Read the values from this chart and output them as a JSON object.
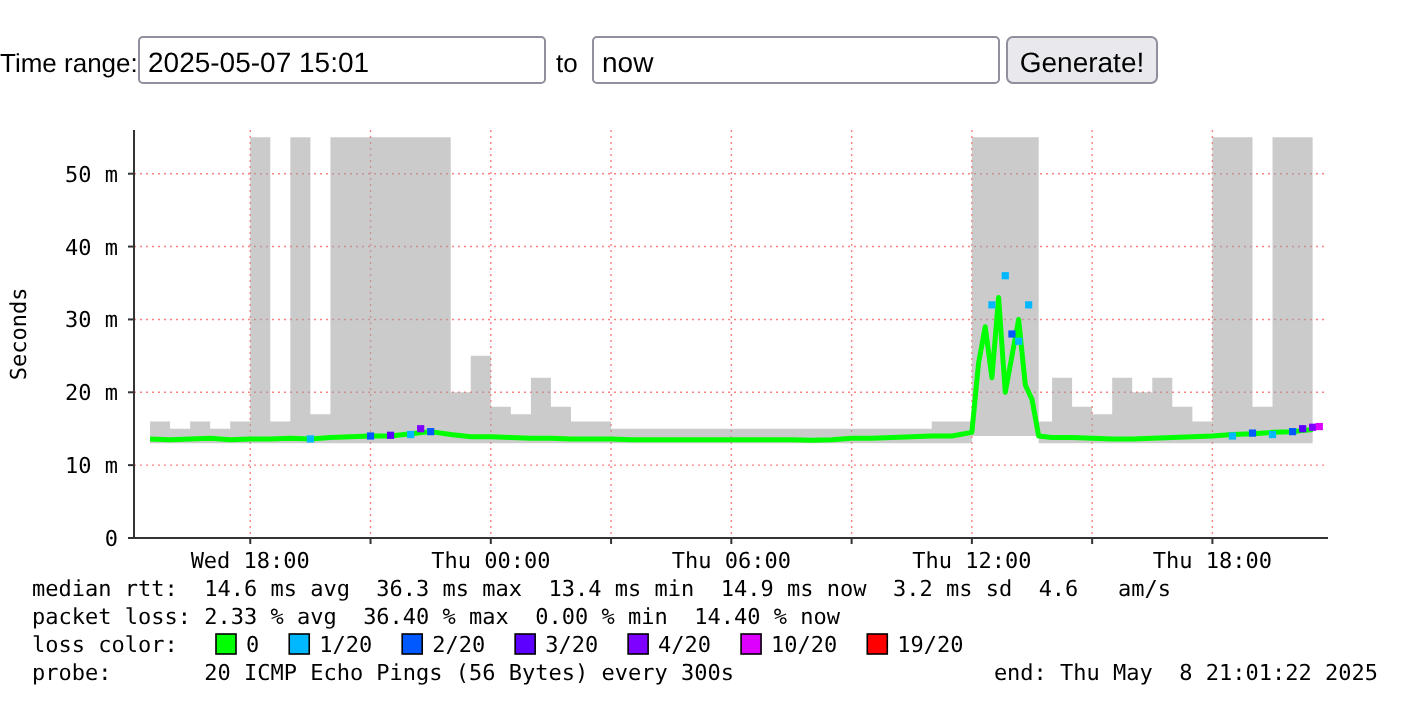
{
  "chart_data": {
    "type": "line",
    "ylabel": "Seconds",
    "xlim": [
      "2025-05-07T15:06",
      "2025-05-08T20:53"
    ],
    "ylim": [
      0,
      56
    ],
    "xticks": [
      {
        "value": "2025-05-07T18:00",
        "label": "Wed 18:00"
      },
      {
        "value": "2025-05-07T21:00",
        "label": null
      },
      {
        "value": "2025-05-08T00:00",
        "label": "Thu 00:00"
      },
      {
        "value": "2025-05-08T03:00",
        "label": null
      },
      {
        "value": "2025-05-08T06:00",
        "label": "Thu 06:00"
      },
      {
        "value": "2025-05-08T09:00",
        "label": null
      },
      {
        "value": "2025-05-08T12:00",
        "label": "Thu 12:00"
      },
      {
        "value": "2025-05-08T15:00",
        "label": null
      },
      {
        "value": "2025-05-08T18:00",
        "label": "Thu 18:00"
      }
    ],
    "yticks": [
      0,
      {
        "value": 10,
        "label": "10 m"
      },
      {
        "value": 20,
        "label": "20 m"
      },
      {
        "value": 30,
        "label": "30 m"
      },
      {
        "value": 40,
        "label": "40 m"
      },
      {
        "value": 50,
        "label": "50 m"
      }
    ],
    "grid": true,
    "legend": "bottom",
    "legend_title": "loss color:",
    "series": [
      {
        "name": "0",
        "color": "#00ff00",
        "x": [
          "2025-05-07T15:30",
          "2025-05-07T16:00",
          "2025-05-07T16:30",
          "2025-05-07T17:00",
          "2025-05-07T17:30",
          "2025-05-07T18:00",
          "2025-05-07T18:30",
          "2025-05-07T19:00",
          "2025-05-07T19:30",
          "2025-05-07T20:00",
          "2025-05-07T20:30",
          "2025-05-07T21:00",
          "2025-05-07T21:30",
          "2025-05-07T22:00",
          "2025-05-07T22:30",
          "2025-05-07T23:00",
          "2025-05-07T23:30",
          "2025-05-08T00:00",
          "2025-05-08T00:30",
          "2025-05-08T01:00",
          "2025-05-08T01:30",
          "2025-05-08T02:00",
          "2025-05-08T02:30",
          "2025-05-08T03:00",
          "2025-05-08T03:30",
          "2025-05-08T04:00",
          "2025-05-08T04:30",
          "2025-05-08T05:00",
          "2025-05-08T05:30",
          "2025-05-08T06:00",
          "2025-05-08T06:30",
          "2025-05-08T07:00",
          "2025-05-08T07:30",
          "2025-05-08T08:00",
          "2025-05-08T08:30",
          "2025-05-08T09:00",
          "2025-05-08T09:30",
          "2025-05-08T10:00",
          "2025-05-08T10:30",
          "2025-05-08T11:00",
          "2025-05-08T11:30",
          "2025-05-08T12:00",
          "2025-05-08T12:10",
          "2025-05-08T12:20",
          "2025-05-08T12:30",
          "2025-05-08T12:40",
          "2025-05-08T12:50",
          "2025-05-08T13:00",
          "2025-05-08T13:10",
          "2025-05-08T13:20",
          "2025-05-08T13:30",
          "2025-05-08T13:40",
          "2025-05-08T14:00",
          "2025-05-08T14:30",
          "2025-05-08T15:00",
          "2025-05-08T15:30",
          "2025-05-08T16:00",
          "2025-05-08T16:30",
          "2025-05-08T17:00",
          "2025-05-08T17:30",
          "2025-05-08T18:00",
          "2025-05-08T18:30",
          "2025-05-08T19:00",
          "2025-05-08T19:30",
          "2025-05-08T20:00",
          "2025-05-08T20:30"
        ],
        "values": [
          13.6,
          13.5,
          13.6,
          13.7,
          13.5,
          13.6,
          13.6,
          13.7,
          13.6,
          13.8,
          13.9,
          14.0,
          14.0,
          14.3,
          14.6,
          14.2,
          13.9,
          13.9,
          13.8,
          13.7,
          13.7,
          13.6,
          13.6,
          13.6,
          13.5,
          13.5,
          13.5,
          13.5,
          13.5,
          13.5,
          13.5,
          13.5,
          13.5,
          13.4,
          13.5,
          13.7,
          13.7,
          13.8,
          13.9,
          14.0,
          14.0,
          14.5,
          24,
          29,
          22,
          33,
          20,
          25,
          30,
          21,
          19,
          14.0,
          13.8,
          13.8,
          13.7,
          13.6,
          13.6,
          13.7,
          13.8,
          13.9,
          14.0,
          14.2,
          14.3,
          14.5,
          14.6,
          14.9
        ],
        "lower": [
          13,
          13,
          13,
          13,
          13,
          13,
          13,
          13,
          13,
          13,
          13,
          13,
          13,
          13,
          13,
          13,
          13,
          13,
          13,
          13,
          13,
          13,
          13,
          13,
          13,
          13,
          13,
          13,
          13,
          13,
          13,
          13,
          13,
          13,
          13,
          13,
          13,
          13,
          13,
          13,
          13,
          14,
          14,
          14,
          14,
          14,
          14,
          14,
          14,
          14,
          14,
          13,
          13,
          13,
          13,
          13,
          13,
          13,
          13,
          13,
          13,
          13,
          13,
          13,
          13,
          13
        ],
        "upper": [
          16,
          15,
          16,
          15,
          16,
          55,
          16,
          55,
          17,
          55,
          55,
          55,
          55,
          55,
          55,
          20,
          25,
          18,
          17,
          22,
          18,
          16,
          16,
          15,
          15,
          15,
          15,
          15,
          15,
          15,
          15,
          15,
          15,
          15,
          15,
          15,
          15,
          15,
          15,
          16,
          16,
          55,
          55,
          55,
          55,
          55,
          55,
          55,
          55,
          55,
          55,
          16,
          22,
          18,
          17,
          22,
          20,
          22,
          18,
          16,
          55,
          55,
          18,
          55,
          55,
          55
        ]
      },
      {
        "name": "1/20",
        "color": "#00b8ff",
        "type": "scatter",
        "marker": "square",
        "x": [
          "2025-05-07T19:30",
          "2025-05-07T22:00",
          "2025-05-08T12:30",
          "2025-05-08T12:50",
          "2025-05-08T13:10",
          "2025-05-08T13:25",
          "2025-05-08T18:30",
          "2025-05-08T19:30"
        ],
        "values": [
          13.6,
          14.2,
          32,
          36,
          27,
          32,
          14.0,
          14.2
        ]
      },
      {
        "name": "2/20",
        "color": "#0059ff",
        "type": "scatter",
        "marker": "square",
        "x": [
          "2025-05-07T21:00",
          "2025-05-07T22:30",
          "2025-05-08T13:00",
          "2025-05-08T19:00",
          "2025-05-08T20:00"
        ],
        "values": [
          14.0,
          14.6,
          28,
          14.4,
          14.6
        ]
      },
      {
        "name": "3/20",
        "color": "#5e00ff",
        "type": "scatter",
        "marker": "square",
        "x": [
          "2025-05-07T21:30",
          "2025-05-08T20:15"
        ],
        "values": [
          14.1,
          15.0
        ]
      },
      {
        "name": "4/20",
        "color": "#7e00ff",
        "type": "scatter",
        "marker": "square",
        "x": [
          "2025-05-07T22:15",
          "2025-05-08T20:30"
        ],
        "values": [
          15.0,
          15.2
        ]
      },
      {
        "name": "10/20",
        "color": "#dd00ff",
        "type": "scatter",
        "marker": "square",
        "x": [
          "2025-05-08T20:40"
        ],
        "values": [
          15.3
        ]
      },
      {
        "name": "19/20",
        "color": "#ff0000",
        "type": "scatter",
        "marker": "square"
      }
    ],
    "annotations": [
      "Time range:",
      "2025-05-07 15:01",
      "to",
      "now",
      "Generate!",
      "median rtt:  14.6 ms avg  36.3 ms max  13.4 ms min  14.9 ms now  3.2 ms sd  4.6   am/s",
      "packet loss: 2.33 % avg  36.40 % max  0.00 % min  14.40 % now",
      "probe:       20 ICMP Echo Pings (56 Bytes) every 300s",
      "end: Thu May  8 21:01:22 2025"
    ]
  }
}
